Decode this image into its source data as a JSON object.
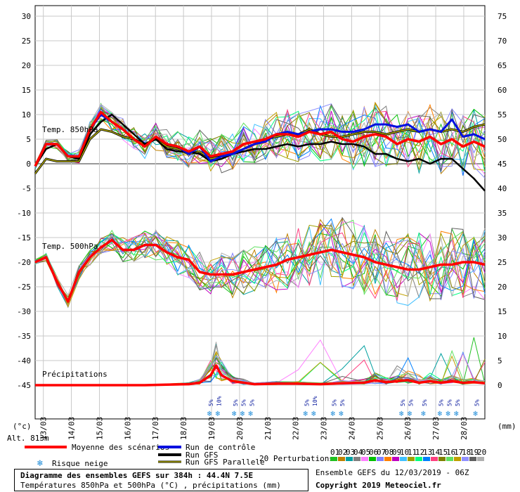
{
  "header": {
    "unit_left": "(°c)",
    "unit_right": "(mm)",
    "altitude": "Alt. 813m"
  },
  "labels": {
    "t850": "Temp. 850hPa",
    "t500": "Temp. 500hPa",
    "precip": "Précipitations"
  },
  "legend": {
    "mean": "Moyenne des scénarios",
    "control": "Run de contrôle",
    "gfs": "Run GFS",
    "gfs_parallel": "Run GFS Parallele",
    "snow": "Risque neige",
    "perturbations": "20 Perturbations",
    "pert_numbers": [
      "01",
      "02",
      "03",
      "04",
      "05",
      "06",
      "07",
      "08",
      "09",
      "10",
      "11",
      "12",
      "13",
      "14",
      "15",
      "16",
      "17",
      "18",
      "19",
      "20"
    ],
    "pert_colors": [
      "#20c020",
      "#c08000",
      "#00a0a0",
      "#808080",
      "#ff80ff",
      "#00c000",
      "#8080ff",
      "#ff8000",
      "#c000c0",
      "#40c0ff",
      "#a0a000",
      "#00ff80",
      "#0080ff",
      "#ff4080",
      "#808000",
      "#60e060",
      "#c0a000",
      "#9090ff",
      "#606060",
      "#b0b0b0"
    ]
  },
  "info": {
    "title": "Diagramme des ensembles GEFS sur 384h : 44.4N 7.5E",
    "subtitle": "Températures 850hPa et 500hPa (°C) , précipitations (mm)",
    "run": "Ensemble GEFS du 12/03/2019 - 06Z",
    "copyright": "Copyright 2019 Meteociel.fr"
  },
  "snow_labels": [
    {
      "t": 64,
      "text": "5%"
    },
    {
      "t": 67,
      "text": "10%"
    },
    {
      "t": 73,
      "text": "5%"
    },
    {
      "t": 76,
      "text": "5%"
    },
    {
      "t": 79,
      "text": "5%"
    },
    {
      "t": 99,
      "text": "5%"
    },
    {
      "t": 102,
      "text": "10%"
    },
    {
      "t": 109,
      "text": "5%"
    },
    {
      "t": 112,
      "text": "5%"
    },
    {
      "t": 134,
      "text": "5%"
    },
    {
      "t": 137,
      "text": "5%"
    },
    {
      "t": 142,
      "text": "5%"
    },
    {
      "t": 148,
      "text": "5%"
    },
    {
      "t": 151,
      "text": "5%"
    },
    {
      "t": 154,
      "text": "5%"
    },
    {
      "t": 161,
      "text": "5%"
    }
  ],
  "chart_data": {
    "type": "line",
    "x_unit": "6-hour steps from 12/03 06Z",
    "x_dates": [
      "13/03",
      "14/03",
      "15/03",
      "16/03",
      "17/03",
      "18/03",
      "19/03",
      "20/03",
      "21/03",
      "22/03",
      "23/03",
      "24/03",
      "25/03",
      "26/03",
      "27/03",
      "28/03"
    ],
    "y_left_range": [
      -45,
      30
    ],
    "y_left_ticks": [
      30,
      25,
      20,
      15,
      10,
      5,
      0,
      -5,
      -10,
      -15,
      -20,
      -25,
      -30,
      -35,
      -40,
      -45
    ],
    "y_right_range": [
      0,
      75
    ],
    "y_right_ticks": [
      75,
      70,
      65,
      60,
      55,
      50,
      45,
      40,
      35,
      30,
      25,
      20,
      15,
      10,
      5,
      0
    ],
    "series": [
      {
        "name": "Temp. 850hPa (Moyenne des scénarios)",
        "x": [
          0,
          4,
          8,
          12,
          16,
          20,
          24,
          28,
          32,
          36,
          40,
          44,
          48,
          52,
          56,
          60,
          64,
          68,
          72,
          76,
          80,
          84,
          88,
          92,
          96,
          100,
          104,
          108,
          112,
          116,
          120,
          124,
          128,
          132,
          136,
          140,
          144,
          148,
          152,
          156,
          160,
          164
        ],
        "y": [
          -0.5,
          4,
          4,
          1.5,
          1.5,
          7,
          10.5,
          8.5,
          7,
          5,
          3.5,
          5.5,
          4,
          3.5,
          2.5,
          3.5,
          1.5,
          2,
          2.5,
          4,
          4.5,
          5,
          6,
          6,
          5.5,
          6.5,
          6,
          6.5,
          5,
          4.5,
          5.5,
          6,
          5.5,
          4,
          5,
          4.5,
          5.5,
          4,
          5,
          3.5,
          4.5,
          3.5
        ]
      },
      {
        "name": "Temp. 500hPa (Moyenne des scénarios)",
        "x": [
          0,
          4,
          8,
          12,
          16,
          20,
          24,
          28,
          32,
          36,
          40,
          44,
          48,
          52,
          56,
          60,
          64,
          68,
          72,
          76,
          80,
          84,
          88,
          92,
          96,
          100,
          104,
          108,
          112,
          116,
          120,
          124,
          128,
          132,
          136,
          140,
          144,
          148,
          152,
          156,
          160,
          164
        ],
        "y": [
          -20,
          -19,
          -24,
          -28,
          -22,
          -19,
          -17,
          -15.5,
          -17.5,
          -17.5,
          -16.5,
          -16.5,
          -18,
          -19,
          -19.5,
          -22,
          -22.5,
          -22.5,
          -22.5,
          -22,
          -21.5,
          -21,
          -20.5,
          -19.5,
          -19,
          -18.5,
          -18,
          -17.5,
          -18,
          -18.5,
          -19,
          -20,
          -20.5,
          -21,
          -21.5,
          -21.5,
          -21,
          -20.5,
          -20.5,
          -20,
          -20,
          -20.5
        ]
      },
      {
        "name": "Précipitations (Moyenne des scénarios)",
        "x": [
          0,
          8,
          16,
          24,
          32,
          40,
          48,
          56,
          60,
          64,
          66,
          68,
          72,
          76,
          80,
          88,
          96,
          104,
          112,
          120,
          124,
          128,
          132,
          136,
          140,
          144,
          148,
          152,
          156,
          160,
          164
        ],
        "y": [
          0,
          0,
          0,
          0,
          0,
          0,
          0.1,
          0.2,
          0.5,
          2,
          4,
          2,
          0.8,
          0.5,
          0.2,
          0.3,
          0.3,
          0.2,
          0.4,
          0.5,
          1,
          0.6,
          0.8,
          1,
          0.5,
          0.8,
          0.5,
          0.8,
          0.5,
          0.6,
          0.4
        ]
      },
      {
        "name": "Run de contrôle",
        "x": [
          0,
          4,
          8,
          12,
          16,
          20,
          24,
          28,
          32,
          36,
          40,
          44,
          48,
          52,
          56,
          60,
          64,
          68,
          72,
          76,
          80,
          84,
          88,
          92,
          96,
          100,
          104,
          108,
          112,
          116,
          120,
          124,
          128,
          132,
          136,
          140,
          144,
          148,
          152,
          156,
          160,
          164
        ],
        "y": [
          -0.5,
          4,
          4,
          1.5,
          1.5,
          7,
          10,
          8.5,
          7,
          5,
          3.5,
          5.5,
          4,
          3.5,
          2,
          3.5,
          0.5,
          1.5,
          2,
          3,
          4,
          4.5,
          6,
          6.5,
          6,
          6.5,
          7,
          7,
          6.5,
          6.5,
          7,
          8,
          8,
          7.5,
          8,
          6.5,
          7,
          6.5,
          9,
          5.5,
          6,
          5
        ]
      },
      {
        "name": "Run GFS",
        "x": [
          0,
          4,
          8,
          12,
          16,
          20,
          24,
          28,
          32,
          36,
          40,
          44,
          48,
          52,
          56,
          60,
          64,
          68,
          72,
          76,
          80,
          84,
          88,
          92,
          96,
          100,
          104,
          108,
          112,
          116,
          120,
          124,
          128,
          132,
          136,
          140,
          144,
          148,
          152,
          156,
          160,
          164
        ],
        "y": [
          -0.5,
          3,
          4,
          1.5,
          1,
          6,
          8.5,
          10,
          8,
          6,
          4,
          5,
          3,
          2.5,
          2.5,
          2,
          0.5,
          1,
          2,
          2.5,
          3,
          3,
          3.5,
          4,
          3.5,
          4,
          4,
          4.5,
          4,
          4,
          3.5,
          2,
          2,
          1,
          0.5,
          1,
          0,
          1,
          1,
          -1,
          -3,
          -5.5
        ]
      },
      {
        "name": "Run GFS Parallele",
        "x": [
          0,
          4,
          8,
          12,
          16,
          20,
          24,
          28,
          32,
          36,
          40,
          44,
          48,
          52,
          56,
          60,
          64,
          68,
          72,
          76,
          80,
          84,
          88,
          92,
          96,
          100,
          104,
          108,
          112,
          116,
          120,
          124,
          128,
          132,
          136,
          140,
          144,
          148,
          152,
          156,
          160,
          164
        ],
        "y": [
          -2,
          1,
          0.5,
          0.5,
          0.5,
          5,
          7,
          6.5,
          5.5,
          5,
          4,
          5,
          3.5,
          3,
          2,
          2.5,
          1,
          1.5,
          2,
          3,
          4,
          5,
          5.5,
          6,
          6,
          7,
          6,
          5.5,
          5.5,
          6,
          6.5,
          6.5,
          6,
          6.5,
          7,
          6.5,
          7,
          6.5,
          7,
          6.5,
          7.5,
          8
        ]
      }
    ]
  }
}
